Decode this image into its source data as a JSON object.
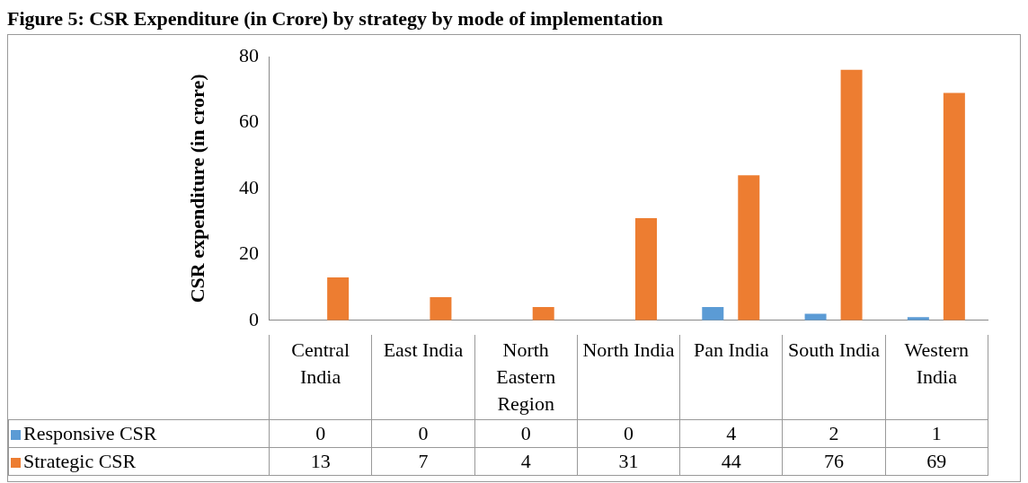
{
  "chart_data": {
    "type": "bar",
    "title": "Figure 5: CSR Expenditure (in Crore) by strategy by mode of implementation",
    "ylabel": "CSR expenditure (in crore)",
    "categories": [
      "Central India",
      "East India",
      "North Eastern Region",
      "North India",
      "Pan India",
      "South India",
      "Western India"
    ],
    "series": [
      {
        "name": "Responsive CSR",
        "color": "#5b9bd5",
        "values": [
          0,
          0,
          0,
          0,
          4,
          2,
          1
        ]
      },
      {
        "name": "Strategic CSR",
        "color": "#ed7d31",
        "values": [
          13,
          7,
          4,
          31,
          44,
          76,
          69
        ]
      }
    ],
    "ylim": [
      0,
      80
    ],
    "yticks": [
      0,
      20,
      40,
      60,
      80
    ],
    "grid": false,
    "legend": "bottom",
    "data_labels": true
  }
}
